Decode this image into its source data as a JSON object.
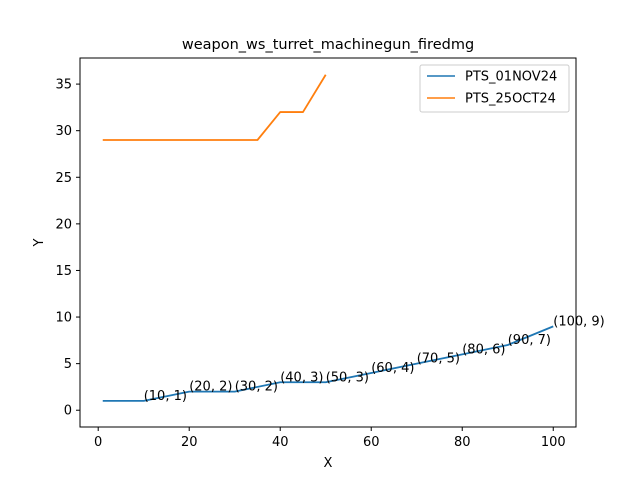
{
  "chart_data": {
    "type": "line",
    "title": "weapon_ws_turret_machinegun_firedmg",
    "xlabel": "X",
    "ylabel": "Y",
    "xlim": [
      -4,
      105
    ],
    "ylim": [
      -1.8,
      37.8
    ],
    "xticks": [
      0,
      20,
      40,
      60,
      80,
      100
    ],
    "yticks": [
      0,
      5,
      10,
      15,
      20,
      25,
      30,
      35
    ],
    "grid": false,
    "legend_position": "top-right",
    "series": [
      {
        "name": "PTS_01NOV24",
        "color": "#1f77b4",
        "x": [
          1,
          10,
          20,
          30,
          40,
          50,
          60,
          70,
          80,
          90,
          100
        ],
        "y": [
          1,
          1,
          2,
          2,
          3,
          3,
          4,
          5,
          6,
          7,
          9
        ]
      },
      {
        "name": "PTS_25OCT24",
        "color": "#ff7f0e",
        "x": [
          1,
          35,
          40,
          45,
          50
        ],
        "y": [
          29,
          29,
          32,
          32,
          36
        ]
      }
    ],
    "annotations": [
      {
        "text": "(10, 1)",
        "x": 10,
        "y": 1
      },
      {
        "text": "(20, 2)",
        "x": 20,
        "y": 2
      },
      {
        "text": "(30, 2)",
        "x": 30,
        "y": 2
      },
      {
        "text": "(40, 3)",
        "x": 40,
        "y": 3
      },
      {
        "text": "(50, 3)",
        "x": 50,
        "y": 3
      },
      {
        "text": "(60, 4)",
        "x": 60,
        "y": 4
      },
      {
        "text": "(70, 5)",
        "x": 70,
        "y": 5
      },
      {
        "text": "(80, 6)",
        "x": 80,
        "y": 6
      },
      {
        "text": "(90, 7)",
        "x": 90,
        "y": 7
      },
      {
        "text": "(100, 9)",
        "x": 100,
        "y": 9
      }
    ]
  }
}
